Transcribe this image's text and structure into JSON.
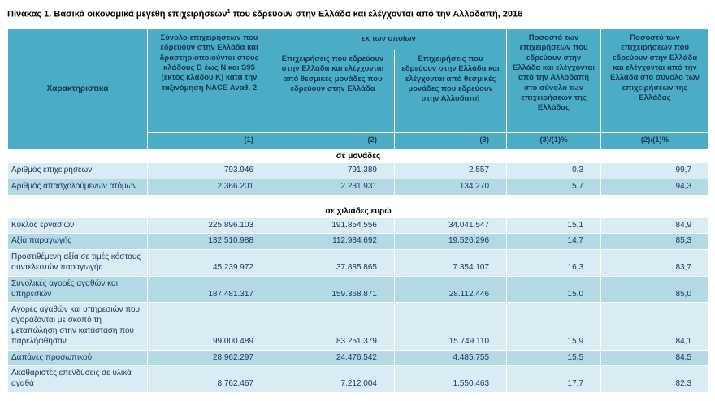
{
  "page_title": {
    "text": "Πίνακας 1. Βασικά οικονομικά μεγέθη επιχειρήσεων",
    "superscript": "1",
    "rest": " που εδρεύουν στην Ελλάδα και ελέγχονται από την Αλλοδαπή, 2016"
  },
  "chart_data": {
    "type": "table",
    "title": "Πίνακας 1. Βασικά οικονομικά μεγέθη επιχειρήσεων(1) που εδρεύουν στην Ελλάδα και ελέγχονται από την Αλλοδαπή, 2016",
    "columns": {
      "characteristics": "Χαρακτηριστικά",
      "col1": "Σύνολο επιχειρήσεων που εδρεύουν στην Ελλάδα και δραστηριοποιούνται στους κλάδους Β έως Ν και S95 (εκτός κλάδου Κ) κατά την ταξινόμηση NACE Αναθ. 2",
      "of_which": "εκ των οποίων",
      "col2": "Επιχειρήσεις που εδρεύουν στην Ελλάδα και ελέγχονται από θεσμικές μονάδες  που εδρεύουν  στην Ελλάδα",
      "col3": "Επιχειρήσεις που εδρεύουν στην Ελλάδα και ελέγχονται από θεσμικές μονάδες που εδρεύουν στην Αλλοδαπή",
      "col4": "Ποσοστό των επιχειρήσεων  που εδρεύουν στην Ελλάδα και ελέγχονται από την Αλλοδαπή στο σύνολο των επιχειρήσεων της Ελλάδας",
      "col5": "Ποσοστό των επιχειρήσεων  που εδρεύουν στην Ελλάδα και ελέγχονται από την Ελλάδα  στο σύνολο των επιχειρήσεων της Ελλάδας"
    },
    "column_codes": [
      "(1)",
      "(2)",
      "(3)",
      "(3)/(1)%",
      "(2)/(1)%"
    ],
    "sections": [
      {
        "label": "σε μονάδες",
        "rows": [
          {
            "label": "Αριθμός επιχειρήσεων",
            "values": [
              "793.946",
              "791.389",
              "2.557",
              "0,3",
              "99,7"
            ]
          },
          {
            "label": "Αριθμός απασχολούμενων ατόμων",
            "values": [
              "2.366.201",
              "2.231.931",
              "134.270",
              "5,7",
              "94,3"
            ]
          }
        ]
      },
      {
        "label": "σε χιλιάδες ευρώ",
        "rows": [
          {
            "label": "Κύκλος εργασιών",
            "values": [
              "225.896.103",
              "191.854.556",
              "34.041.547",
              "15,1",
              "84,9"
            ]
          },
          {
            "label": "Αξία παραγωγής",
            "values": [
              "132.510.988",
              "112.984.692",
              "19.526.296",
              "14,7",
              "85,3"
            ]
          },
          {
            "label": "Προστιθέμενη αξία σε τιμές κόστους συντελεστών παραγωγής",
            "values": [
              "45.239.972",
              "37.885.865",
              "7.354.107",
              "16,3",
              "83,7"
            ]
          },
          {
            "label": "Συνολικές αγορές αγαθών και υπηρεσιών",
            "values": [
              "187.481.317",
              "159.368.871",
              "28.112.446",
              "15,0",
              "85,0"
            ]
          },
          {
            "label": "Αγορές αγαθών και υπηρεσιών που αγοράζονται με σκοπό τη μεταπώληση στην κατάσταση που παρελήφθησαν",
            "values": [
              "99.000.489",
              "83.251.379",
              "15.749.110",
              "15,9",
              "84,1"
            ]
          },
          {
            "label": "Δαπάνες προσωπικού",
            "values": [
              "28.962.297",
              "24.476.542",
              "4.485.755",
              "15,5",
              "84,5"
            ]
          },
          {
            "label": "Ακαθάριστες επενδύσεις σε υλικά αγαθά",
            "values": [
              "8.762.467",
              "7.212.004",
              "1.550.463",
              "17,7",
              "82,3"
            ]
          }
        ]
      }
    ]
  },
  "colors": {
    "header_bg": "#4BACC6",
    "row_light": "#D9EBF3",
    "row_dark": "#B3D9E5",
    "header_text": "#16374F",
    "body_text": "#17365D"
  }
}
